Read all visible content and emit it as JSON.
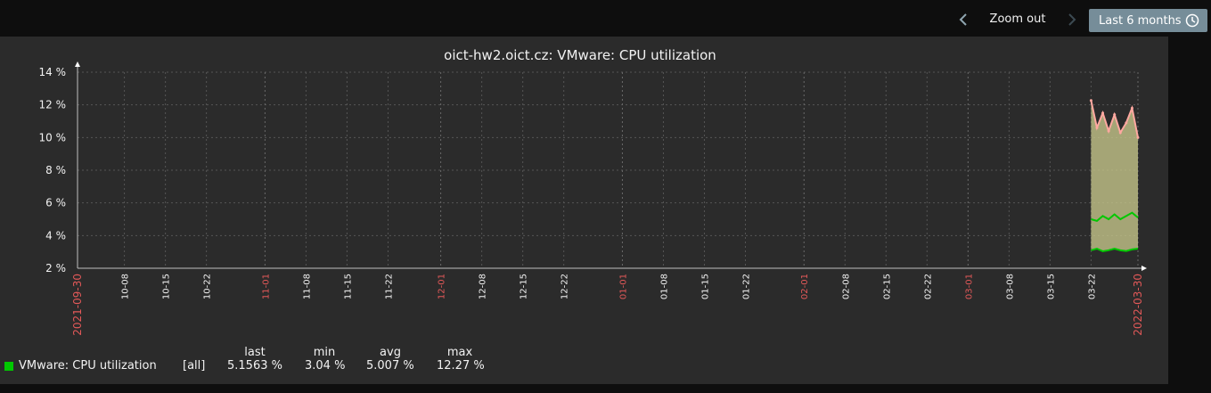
{
  "toolbar": {
    "zoom_out_label": "Zoom out",
    "period_label": "Last 6 months",
    "icons": {
      "prev": "chevron-left-icon",
      "next": "chevron-right-icon",
      "clock": "clock-icon"
    }
  },
  "colors": {
    "background": "#2b2b2b",
    "grid": "#555555",
    "axis": "#bfbfbf",
    "text": "#f2f2f2",
    "red_label": "#e45959",
    "fill": "#c8c88c",
    "max_line": "#ffa8a0",
    "avg_line": "#00c800",
    "min_line": "#00c800",
    "button": "#768d99"
  },
  "chart_data": {
    "type": "area",
    "title": "oict-hw2.oict.cz: VMware: CPU utilization",
    "ylim": [
      2,
      14
    ],
    "y_ticks": [
      "14 %",
      "12 %",
      "10 %",
      "8 %",
      "6 %",
      "4 %",
      "2 %"
    ],
    "x_range": [
      "2021-09-30",
      "2022-03-30"
    ],
    "x_ticks": [
      {
        "label": "2021-09-30",
        "date": "2021-09-30",
        "red": true
      },
      {
        "label": "10-08",
        "date": "2021-10-08",
        "red": false
      },
      {
        "label": "10-15",
        "date": "2021-10-15",
        "red": false
      },
      {
        "label": "10-22",
        "date": "2021-10-22",
        "red": false
      },
      {
        "label": "11-01",
        "date": "2021-11-01",
        "red": true
      },
      {
        "label": "11-08",
        "date": "2021-11-08",
        "red": false
      },
      {
        "label": "11-15",
        "date": "2021-11-15",
        "red": false
      },
      {
        "label": "11-22",
        "date": "2021-11-22",
        "red": false
      },
      {
        "label": "12-01",
        "date": "2021-12-01",
        "red": true
      },
      {
        "label": "12-08",
        "date": "2021-12-08",
        "red": false
      },
      {
        "label": "12-15",
        "date": "2021-12-15",
        "red": false
      },
      {
        "label": "12-22",
        "date": "2021-12-22",
        "red": false
      },
      {
        "label": "01-01",
        "date": "2022-01-01",
        "red": true
      },
      {
        "label": "01-08",
        "date": "2022-01-08",
        "red": false
      },
      {
        "label": "01-15",
        "date": "2022-01-15",
        "red": false
      },
      {
        "label": "01-22",
        "date": "2022-01-22",
        "red": false
      },
      {
        "label": "02-01",
        "date": "2022-02-01",
        "red": true
      },
      {
        "label": "02-08",
        "date": "2022-02-08",
        "red": false
      },
      {
        "label": "02-15",
        "date": "2022-02-15",
        "red": false
      },
      {
        "label": "02-22",
        "date": "2022-02-22",
        "red": false
      },
      {
        "label": "03-01",
        "date": "2022-03-01",
        "red": true
      },
      {
        "label": "03-08",
        "date": "2022-03-08",
        "red": false
      },
      {
        "label": "03-15",
        "date": "2022-03-15",
        "red": false
      },
      {
        "label": "03-22",
        "date": "2022-03-22",
        "red": false
      },
      {
        "label": "2022-03-30",
        "date": "2022-03-30",
        "red": true
      }
    ],
    "grid": true,
    "series": [
      {
        "name": "VMware: CPU utilization",
        "band_x": [
          "2022-03-22",
          "2022-03-23",
          "2022-03-24",
          "2022-03-25",
          "2022-03-26",
          "2022-03-27",
          "2022-03-28",
          "2022-03-29",
          "2022-03-30"
        ],
        "max": [
          12.27,
          10.6,
          11.5,
          10.4,
          11.4,
          10.3,
          10.9,
          11.8,
          10.0
        ],
        "avg": [
          5.0,
          4.9,
          5.2,
          5.0,
          5.3,
          5.0,
          5.2,
          5.4,
          5.1
        ],
        "min": [
          3.1,
          3.2,
          3.04,
          3.1,
          3.2,
          3.1,
          3.05,
          3.15,
          3.2
        ]
      }
    ]
  },
  "legend": {
    "headers": {
      "last": "last",
      "min": "min",
      "avg": "avg",
      "max": "max"
    },
    "item": {
      "name": "VMware: CPU utilization",
      "func": "[all]",
      "last": "5.1563 %",
      "min": "3.04 %",
      "avg": "5.007 %",
      "max": "12.27 %"
    }
  }
}
